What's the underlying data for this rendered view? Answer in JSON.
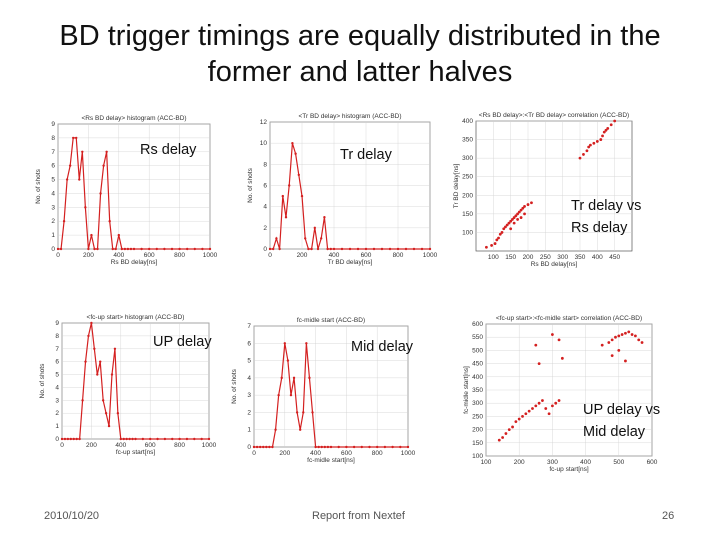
{
  "slide": {
    "title_line1": "BD trigger timings are equally distributed in the",
    "title_line2": "former and latter halves",
    "footer_date": "2010/10/20",
    "footer_center": "Report from Nextef",
    "page_number": "26"
  },
  "colors": {
    "series": "#d42020",
    "grid": "#d0d0d0",
    "frame": "#555555"
  },
  "chart_data": [
    {
      "id": "rs",
      "type": "line",
      "annotation": "Rs delay",
      "title": "<Rs BD delay> histogram (ACC-BD)",
      "xlabel": "Rs BD delay[ns]",
      "ylabel": "No. of shots",
      "xlim": [
        0,
        1000
      ],
      "ylim": [
        0,
        9
      ],
      "xticks": [
        0,
        200,
        400,
        600,
        800,
        1000
      ],
      "yticks": [
        0,
        1,
        2,
        3,
        4,
        5,
        6,
        7,
        8,
        9
      ],
      "x": [
        0,
        20,
        40,
        60,
        80,
        100,
        120,
        140,
        160,
        180,
        200,
        220,
        240,
        260,
        280,
        300,
        320,
        340,
        360,
        380,
        400,
        420,
        440,
        460,
        480,
        500,
        550,
        600,
        650,
        700,
        750,
        800,
        850,
        900,
        950,
        1000
      ],
      "values": [
        0,
        0,
        2,
        5,
        6,
        8,
        8,
        5,
        7,
        3,
        0,
        1,
        0,
        0,
        4,
        6,
        7,
        2,
        0,
        0,
        1,
        0,
        0,
        0,
        0,
        0,
        0,
        0,
        0,
        0,
        0,
        0,
        0,
        0,
        0,
        0
      ]
    },
    {
      "id": "tr",
      "type": "line",
      "annotation": "Tr delay",
      "title": "<Tr BD delay> histogram (ACC-BD)",
      "xlabel": "Tr BD delay[ns]",
      "ylabel": "No. of shots",
      "xlim": [
        0,
        1000
      ],
      "ylim": [
        0,
        12
      ],
      "xticks": [
        0,
        200,
        400,
        600,
        800,
        1000
      ],
      "yticks": [
        0,
        2,
        4,
        6,
        8,
        10,
        12
      ],
      "x": [
        0,
        20,
        40,
        60,
        80,
        100,
        120,
        140,
        160,
        180,
        200,
        220,
        240,
        260,
        280,
        300,
        320,
        340,
        360,
        380,
        400,
        450,
        500,
        550,
        600,
        650,
        700,
        750,
        800,
        850,
        900,
        950,
        1000
      ],
      "values": [
        0,
        0,
        1,
        0,
        5,
        3,
        6,
        10,
        9,
        7,
        5,
        1,
        0,
        0,
        2,
        0,
        1,
        3,
        0,
        0,
        0,
        0,
        0,
        0,
        0,
        0,
        0,
        0,
        0,
        0,
        0,
        0,
        0
      ]
    },
    {
      "id": "tr_rs",
      "type": "scatter",
      "annotation_line1": "Tr delay vs",
      "annotation_line2": "Rs delay",
      "title": "<Rs BD delay>:<Tr BD delay> correlation (ACC-BD)",
      "xlabel": "Rs BD delay[ns]",
      "ylabel": "Tr BD delay[ns]",
      "xlim": [
        50,
        500
      ],
      "ylim": [
        50,
        400
      ],
      "xticks": [
        100,
        150,
        200,
        250,
        300,
        350,
        400,
        450
      ],
      "yticks": [
        100,
        150,
        200,
        250,
        300,
        350,
        400
      ],
      "x": [
        80,
        95,
        105,
        110,
        115,
        120,
        125,
        130,
        135,
        140,
        145,
        150,
        155,
        160,
        165,
        170,
        175,
        180,
        185,
        190,
        200,
        210,
        150,
        160,
        170,
        180,
        190,
        350,
        360,
        370,
        375,
        380,
        390,
        400,
        410,
        415,
        420,
        425,
        430,
        440,
        450
      ],
      "y": [
        60,
        65,
        70,
        80,
        85,
        95,
        100,
        110,
        115,
        120,
        125,
        130,
        135,
        140,
        145,
        150,
        155,
        160,
        165,
        170,
        175,
        180,
        110,
        125,
        135,
        140,
        150,
        300,
        310,
        320,
        330,
        335,
        340,
        345,
        350,
        360,
        370,
        375,
        380,
        390,
        400
      ]
    },
    {
      "id": "up",
      "type": "line",
      "annotation": "UP delay",
      "title": "<fc-up start> histogram (ACC-BD)",
      "xlabel": "fc-up start[ns]",
      "ylabel": "No. of shots",
      "xlim": [
        0,
        1000
      ],
      "ylim": [
        0,
        9
      ],
      "xticks": [
        0,
        200,
        400,
        600,
        800,
        1000
      ],
      "yticks": [
        0,
        1,
        2,
        3,
        4,
        5,
        6,
        7,
        8,
        9
      ],
      "x": [
        0,
        20,
        40,
        60,
        80,
        100,
        120,
        140,
        160,
        180,
        200,
        220,
        240,
        260,
        280,
        300,
        320,
        340,
        360,
        380,
        400,
        420,
        440,
        460,
        480,
        500,
        550,
        600,
        650,
        700,
        750,
        800,
        850,
        900,
        950,
        1000
      ],
      "values": [
        0,
        0,
        0,
        0,
        0,
        0,
        0,
        3,
        6,
        8,
        9,
        7,
        5,
        6,
        3,
        2,
        1,
        5,
        7,
        2,
        0,
        0,
        0,
        0,
        0,
        0,
        0,
        0,
        0,
        0,
        0,
        0,
        0,
        0,
        0,
        0
      ]
    },
    {
      "id": "mid",
      "type": "line",
      "annotation": "Mid delay",
      "title": "fc-midle start (ACC-BD)",
      "xlabel": "fc-midle start[ns]",
      "ylabel": "No. of shots",
      "xlim": [
        0,
        1000
      ],
      "ylim": [
        0,
        7
      ],
      "xticks": [
        0,
        200,
        400,
        600,
        800,
        1000
      ],
      "yticks": [
        0,
        1,
        2,
        3,
        4,
        5,
        6,
        7
      ],
      "x": [
        0,
        20,
        40,
        60,
        80,
        100,
        120,
        140,
        160,
        180,
        200,
        220,
        240,
        260,
        280,
        300,
        320,
        340,
        360,
        380,
        400,
        420,
        440,
        460,
        480,
        500,
        550,
        600,
        650,
        700,
        750,
        800,
        850,
        900,
        950,
        1000
      ],
      "values": [
        0,
        0,
        0,
        0,
        0,
        0,
        0,
        1,
        3,
        4,
        6,
        5,
        3,
        4,
        2,
        1,
        2,
        6,
        4,
        2,
        0,
        0,
        0,
        0,
        0,
        0,
        0,
        0,
        0,
        0,
        0,
        0,
        0,
        0,
        0,
        0
      ]
    },
    {
      "id": "up_mid",
      "type": "scatter",
      "annotation_line1": "UP delay vs",
      "annotation_line2": "Mid delay",
      "title": "<fc-up start>:<fc-midle start> correlation (ACC-BD)",
      "xlabel": "fc-up start[ns]",
      "ylabel": "fc-midle start[ns]",
      "xlim": [
        100,
        600
      ],
      "ylim": [
        100,
        600
      ],
      "xticks": [
        100,
        200,
        300,
        400,
        500,
        600
      ],
      "yticks": [
        100,
        150,
        200,
        250,
        300,
        350,
        400,
        450,
        500,
        550,
        600
      ],
      "x": [
        140,
        150,
        160,
        170,
        180,
        190,
        200,
        210,
        220,
        230,
        240,
        250,
        260,
        270,
        280,
        290,
        300,
        310,
        320,
        250,
        260,
        300,
        320,
        330,
        450,
        470,
        480,
        490,
        500,
        510,
        520,
        530,
        540,
        550,
        560,
        570,
        480,
        500,
        520
      ],
      "y": [
        160,
        170,
        185,
        200,
        210,
        230,
        240,
        250,
        260,
        270,
        280,
        290,
        300,
        310,
        280,
        260,
        290,
        300,
        310,
        520,
        450,
        560,
        540,
        470,
        520,
        530,
        540,
        550,
        555,
        560,
        565,
        570,
        560,
        555,
        540,
        530,
        480,
        500,
        460
      ]
    }
  ]
}
